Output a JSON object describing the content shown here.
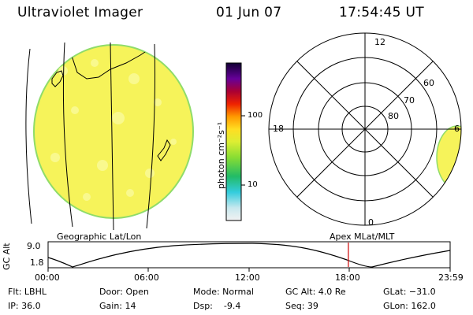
{
  "header": {
    "instrument": "Ultraviolet Imager",
    "date": "01 Jun 07",
    "time": "17:54:45 UT"
  },
  "colorbar": {
    "unit_label": "photon cm⁻²s⁻¹",
    "ticks": [
      "100",
      "10"
    ]
  },
  "left_panel": {
    "caption": "Geographic Lat/Lon"
  },
  "polar_panel": {
    "caption": "Apex MLat/MLT",
    "mlt_labels": {
      "top": "12",
      "left": "18",
      "right": "6",
      "bottom": "0"
    },
    "lat_labels": [
      "60",
      "70",
      "80"
    ]
  },
  "altitude_plot": {
    "ylabel": "GC Alt",
    "yticks": [
      "9.0",
      "1.8"
    ],
    "xticks": [
      "00:00",
      "06:00",
      "12:00",
      "18:00",
      "23:59"
    ],
    "marker_time": "17:54:45",
    "marker_color": "#cc0000"
  },
  "status": {
    "filter": "Flt: LBHL",
    "ip": "IP: 36.0",
    "door": "Door: Open",
    "gain": "Gain: 14",
    "mode": "Mode: Normal",
    "dsp": "Dsp:    -9.4",
    "gc_alt": "GC Alt: 4.0 Re",
    "seq": "Seq: 39",
    "glat": "GLat: −31.0",
    "glon": "GLon: 162.0"
  },
  "colors": {
    "disk_fill": "#f6f35a",
    "disk_rim": "#8fdc6a",
    "polar_fill": "#f6f35a",
    "marker": "#cc0000"
  }
}
